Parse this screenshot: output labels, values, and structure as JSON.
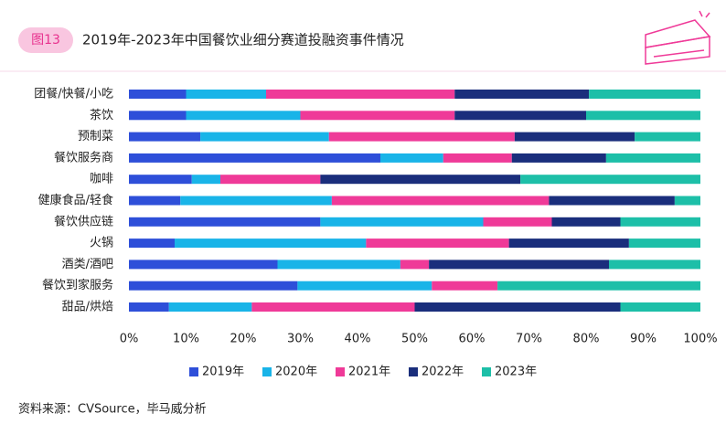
{
  "chart_data": {
    "type": "stacked_barh",
    "figure_label": "图13",
    "title": "2019年-2023年中国餐饮业细分赛道投融资事件情况",
    "source": "资料来源：CVSource，毕马威分析",
    "categories": [
      "团餐/快餐/小吃",
      "茶饮",
      "预制菜",
      "餐饮服务商",
      "咖啡",
      "健康食品/轻食",
      "餐饮供应链",
      "火锅",
      "酒类/酒吧",
      "餐饮到家服务",
      "甜品/烘焙"
    ],
    "series": [
      {
        "name": "2019年",
        "color": "#2e4fd9",
        "values": [
          10,
          10,
          12.5,
          44,
          11,
          9,
          33.5,
          8,
          26,
          29.5,
          7
        ]
      },
      {
        "name": "2020年",
        "color": "#19b4e8",
        "values": [
          14,
          20,
          22.5,
          11,
          5,
          26.5,
          28.5,
          33.5,
          21.5,
          23.5,
          14.5
        ]
      },
      {
        "name": "2021年",
        "color": "#ef3a98",
        "values": [
          33,
          27,
          32.5,
          12,
          17.5,
          38,
          12,
          25,
          5,
          11.5,
          28.5
        ]
      },
      {
        "name": "2022年",
        "color": "#1a2e7c",
        "values": [
          23.5,
          23,
          21,
          16.5,
          35,
          22,
          12,
          21,
          31.5,
          0,
          36
        ]
      },
      {
        "name": "2023年",
        "color": "#1dbfa8",
        "values": [
          19.5,
          20,
          11.5,
          16.5,
          31.5,
          4.5,
          14,
          12.5,
          16,
          35.5,
          14
        ]
      }
    ],
    "xlim": [
      0,
      100
    ],
    "xticks": [
      {
        "value": 0,
        "label": "0%"
      },
      {
        "value": 10,
        "label": "10%"
      },
      {
        "value": 20,
        "label": "20%"
      },
      {
        "value": 30,
        "label": "30%"
      },
      {
        "value": 40,
        "label": "40%"
      },
      {
        "value": 50,
        "label": "50%"
      },
      {
        "value": 60,
        "label": "60%"
      },
      {
        "value": 70,
        "label": "70%"
      },
      {
        "value": 80,
        "label": "80%"
      },
      {
        "value": 90,
        "label": "90%"
      },
      {
        "value": 100,
        "label": "100%"
      }
    ],
    "grid": false,
    "legend": "bottom"
  }
}
